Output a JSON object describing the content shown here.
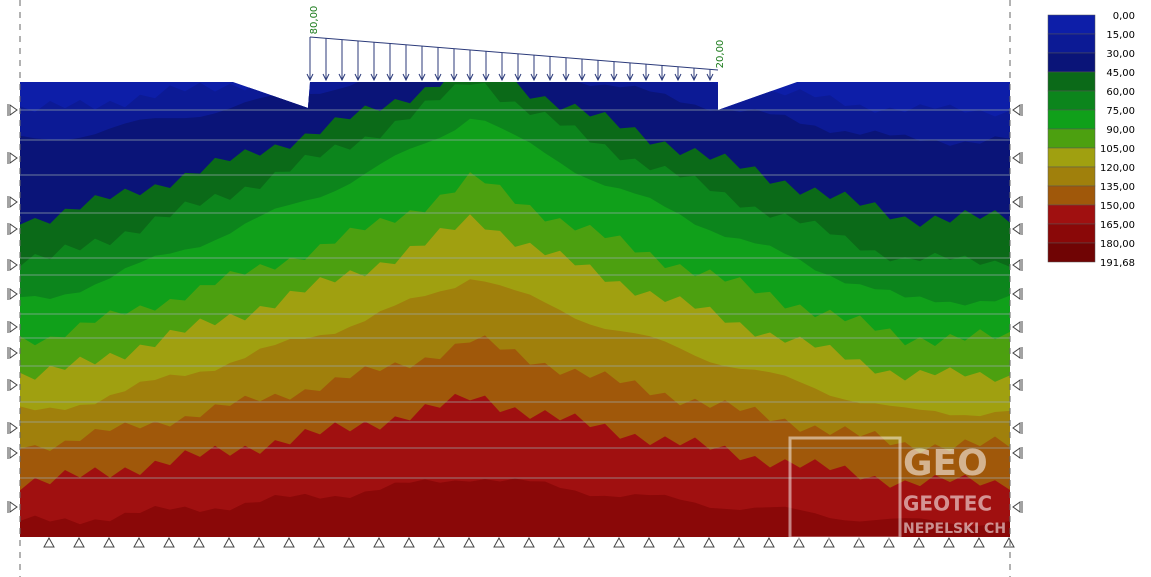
{
  "legend": {
    "levels": [
      "0,00",
      "15,00",
      "30,00",
      "45,00",
      "60,00",
      "75,00",
      "90,00",
      "105,00",
      "120,00",
      "135,00",
      "150,00",
      "165,00",
      "180,00",
      "191,68"
    ],
    "colors": [
      "#0d1ea8",
      "#0c1a95",
      "#0a1478",
      "#0b6a18",
      "#0c851c",
      "#10a01a",
      "#4ca010",
      "#a0a010",
      "#a0800c",
      "#a0580a",
      "#a01010",
      "#8a0808",
      "#700404"
    ]
  },
  "loads": {
    "left": "80,00",
    "right": "20,00"
  },
  "watermark": [
    "GEO",
    "GEOTEC",
    "NEPELSKI CH"
  ]
}
